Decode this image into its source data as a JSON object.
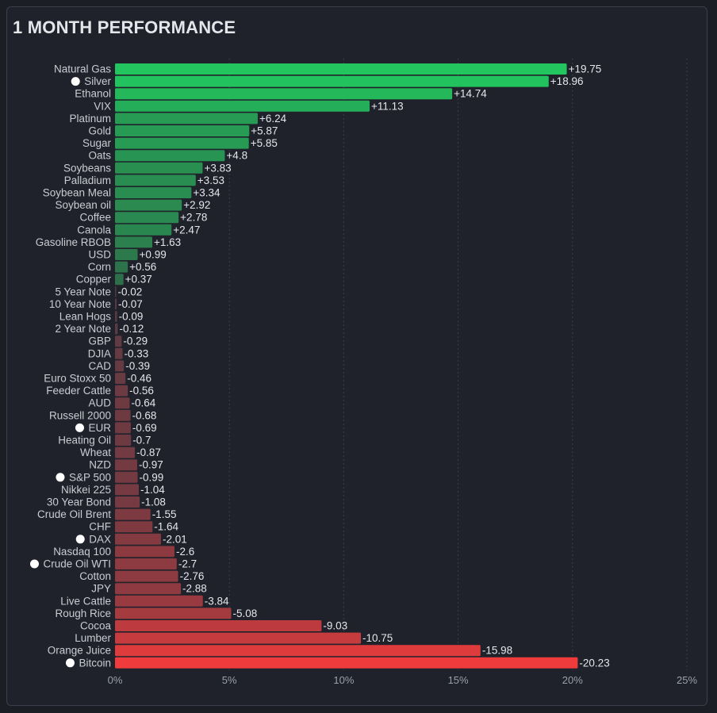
{
  "title": "1 MONTH PERFORMANCE",
  "chart_data": {
    "type": "bar",
    "orientation": "horizontal",
    "title": "1 MONTH PERFORMANCE",
    "xlim": [
      0,
      25
    ],
    "x_ticks": [
      "0%",
      "5%",
      "10%",
      "15%",
      "20%",
      "25%"
    ],
    "x_tick_values": [
      0,
      5,
      10,
      15,
      20,
      25
    ],
    "value_basis": "absolute",
    "grid": "vertical-dotted",
    "colors": {
      "positive": "#22c55e",
      "positive_dim": "#2f5e46",
      "negative": "#ef3b3b",
      "negative_dim": "#4a3a44",
      "label": "#c9ccd3",
      "value_label": "#e4e6ea",
      "grid": "#3a3f4b"
    },
    "categories": [
      "Natural Gas",
      "Silver",
      "Ethanol",
      "VIX",
      "Platinum",
      "Gold",
      "Sugar",
      "Oats",
      "Soybeans",
      "Palladium",
      "Soybean Meal",
      "Soybean oil",
      "Coffee",
      "Canola",
      "Gasoline RBOB",
      "USD",
      "Corn",
      "Copper",
      "5 Year Note",
      "10 Year Note",
      "Lean Hogs",
      "2 Year Note",
      "GBP",
      "DJIA",
      "CAD",
      "Euro Stoxx 50",
      "Feeder Cattle",
      "AUD",
      "Russell 2000",
      "EUR",
      "Heating Oil",
      "Wheat",
      "NZD",
      "S&P 500",
      "Nikkei 225",
      "30 Year Bond",
      "Crude Oil Brent",
      "CHF",
      "DAX",
      "Nasdaq 100",
      "Crude Oil WTI",
      "Cotton",
      "JPY",
      "Live Cattle",
      "Rough Rice",
      "Cocoa",
      "Lumber",
      "Orange Juice",
      "Bitcoin"
    ],
    "values": [
      19.75,
      18.96,
      14.74,
      11.13,
      6.24,
      5.87,
      5.85,
      4.8,
      3.83,
      3.53,
      3.34,
      2.92,
      2.78,
      2.47,
      1.63,
      0.99,
      0.56,
      0.37,
      -0.02,
      -0.07,
      -0.09,
      -0.12,
      -0.29,
      -0.33,
      -0.39,
      -0.46,
      -0.56,
      -0.64,
      -0.68,
      -0.69,
      -0.7,
      -0.87,
      -0.97,
      -0.99,
      -1.04,
      -1.08,
      -1.55,
      -1.64,
      -2.01,
      -2.6,
      -2.7,
      -2.76,
      -2.88,
      -3.84,
      -5.08,
      -9.03,
      -10.75,
      -15.98,
      -20.23
    ],
    "value_labels": [
      "+19.75",
      "+18.96",
      "+14.74",
      "+11.13",
      "+6.24",
      "+5.87",
      "+5.85",
      "+4.8",
      "+3.83",
      "+3.53",
      "+3.34",
      "+2.92",
      "+2.78",
      "+2.47",
      "+1.63",
      "+0.99",
      "+0.56",
      "+0.37",
      "-0.02",
      "-0.07",
      "-0.09",
      "-0.12",
      "-0.29",
      "-0.33",
      "-0.39",
      "-0.46",
      "-0.56",
      "-0.64",
      "-0.68",
      "-0.69",
      "-0.7",
      "-0.87",
      "-0.97",
      "-0.99",
      "-1.04",
      "-1.08",
      "-1.55",
      "-1.64",
      "-2.01",
      "-2.6",
      "-2.7",
      "-2.76",
      "-2.88",
      "-3.84",
      "-5.08",
      "-9.03",
      "-10.75",
      "-15.98",
      "-20.23"
    ],
    "marked_categories": [
      "Silver",
      "EUR",
      "S&P 500",
      "DAX",
      "Crude Oil WTI",
      "Bitcoin"
    ]
  }
}
